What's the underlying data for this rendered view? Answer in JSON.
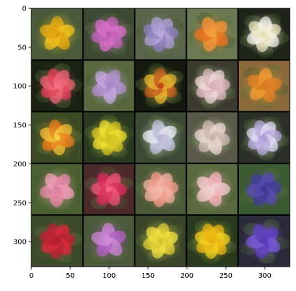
{
  "figure": {
    "x_ticks": [
      "0",
      "50",
      "100",
      "150",
      "200",
      "250",
      "300"
    ],
    "y_ticks": [
      "0",
      "50",
      "100",
      "150",
      "200",
      "250",
      "300"
    ],
    "x_range": [
      0,
      332
    ],
    "y_range": [
      0,
      332
    ],
    "grid": {
      "rows": 5,
      "cols": 5
    },
    "tiles": [
      {
        "bg": "#4a5a3a",
        "c1": "#f2c21b",
        "c2": "#e0a010",
        "subject": "yellow-flower"
      },
      {
        "bg": "#3c4a34",
        "c1": "#d96fc9",
        "c2": "#b85fb0",
        "subject": "pink-purple-flower"
      },
      {
        "bg": "#5a6448",
        "c1": "#8e7fbf",
        "c2": "#b8a8d8",
        "subject": "lavender-flower"
      },
      {
        "bg": "#6a7a52",
        "c1": "#e8731e",
        "c2": "#f2a040",
        "subject": "orange-flower"
      },
      {
        "bg": "#1e2418",
        "c1": "#f4f1e6",
        "c2": "#e8e0b0",
        "subject": "white-flower"
      },
      {
        "bg": "#1a2214",
        "c1": "#e2455a",
        "c2": "#f07080",
        "subject": "red-pink-flower"
      },
      {
        "bg": "#5a6840",
        "c1": "#c7a7e0",
        "c2": "#a888c8",
        "subject": "lilac-flower"
      },
      {
        "bg": "#141a10",
        "c1": "#e6b630",
        "c2": "#c04a1c",
        "subject": "yellow-red-flower"
      },
      {
        "bg": "#3a3a2e",
        "c1": "#f0d8d8",
        "c2": "#d8b0b8",
        "subject": "pale-pink-flower"
      },
      {
        "bg": "#8a6a3a",
        "c1": "#f09a30",
        "c2": "#d87820",
        "subject": "orange-cluster-flower"
      },
      {
        "bg": "#3a4a24",
        "c1": "#e8801c",
        "c2": "#f2d040",
        "subject": "orange-spiky-flower"
      },
      {
        "bg": "#2a3a20",
        "c1": "#f0e030",
        "c2": "#d0c020",
        "subject": "small-yellow-flower"
      },
      {
        "bg": "#3a4a34",
        "c1": "#e6e8f2",
        "c2": "#b8b8d8",
        "subject": "white-iris"
      },
      {
        "bg": "#5a5a4a",
        "c1": "#e8d8d0",
        "c2": "#c8b0a8",
        "subject": "pale-flower"
      },
      {
        "bg": "#2a3028",
        "c1": "#e0dcf2",
        "c2": "#b0a0d8",
        "subject": "white-purple-flower"
      },
      {
        "bg": "#4a6030",
        "c1": "#f0a0b8",
        "c2": "#e080a0",
        "subject": "pink-flower"
      },
      {
        "bg": "#4a2a2a",
        "c1": "#d8305a",
        "c2": "#f06080",
        "subject": "magenta-cluster"
      },
      {
        "bg": "#4a5a38",
        "c1": "#f29a8a",
        "c2": "#f2b8a8",
        "subject": "salmon-flower"
      },
      {
        "bg": "#5a6a40",
        "c1": "#f2b0b8",
        "c2": "#f0d0d0",
        "subject": "light-pink-flower"
      },
      {
        "bg": "#3a5a30",
        "c1": "#5a4ab0",
        "c2": "#3a3a90",
        "subject": "blue-purple-flower"
      },
      {
        "bg": "#3a4a2a",
        "c1": "#d82a3a",
        "c2": "#b02030",
        "subject": "red-flower"
      },
      {
        "bg": "#4a5a3a",
        "c1": "#b060c0",
        "c2": "#d090d8",
        "subject": "purple-cluster"
      },
      {
        "bg": "#3a4428",
        "c1": "#f0e040",
        "c2": "#d8c830",
        "subject": "yellow-flower-2"
      },
      {
        "bg": "#2a3a1e",
        "c1": "#f2d020",
        "c2": "#e8b010",
        "subject": "bright-yellow-flower"
      },
      {
        "bg": "#2a2a3a",
        "c1": "#7a5ad8",
        "c2": "#5a3ab8",
        "subject": "violet-flower"
      }
    ]
  }
}
